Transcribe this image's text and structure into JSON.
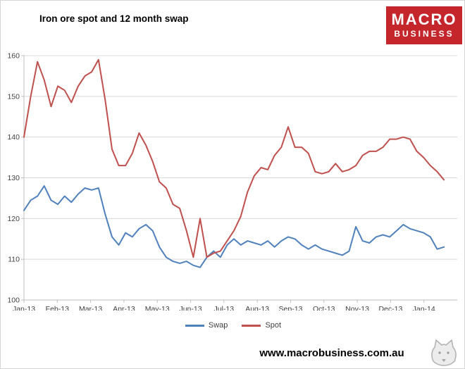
{
  "header": {
    "logo_line1": "MACRO",
    "logo_line2": "BUSINESS"
  },
  "footer": {
    "url": "www.macrobusiness.com.au"
  },
  "colors": {
    "grid": "#d9d9d9",
    "axis": "#bfbfbf",
    "tick_text": "#3f3f3f",
    "logo_bg": "#c4262c",
    "logo_text": "#ffffff"
  },
  "chart_data": {
    "type": "line",
    "title": "Iron ore spot and 12 month swap",
    "x_tick_labels": [
      "Jan-13",
      "Feb-13",
      "Mar-13",
      "Apr-13",
      "May-13",
      "Jun-13",
      "Jul-13",
      "Aug-13",
      "Sep-13",
      "Oct-13",
      "Nov-13",
      "Dec-13",
      "Jan-14"
    ],
    "x_span_months": 12.6,
    "ylim": [
      100,
      160
    ],
    "ytick_step": 10,
    "grid": true,
    "legend_position": "bottom",
    "series": [
      {
        "name": "Swap",
        "color": "#4f81bd",
        "sampling": "weekly",
        "values": [
          122,
          124.5,
          125.5,
          128,
          124.5,
          123.5,
          125.5,
          124,
          126,
          127.5,
          127,
          127.5,
          121,
          115.5,
          113.5,
          116.5,
          115.5,
          117.5,
          118.5,
          117,
          113,
          110.5,
          109.5,
          109,
          109.5,
          108.5,
          108,
          110.5,
          112,
          110.5,
          113.5,
          115,
          113.5,
          114.5,
          114,
          113.5,
          114.5,
          113,
          114.5,
          115.5,
          115,
          113.5,
          112.5,
          113.5,
          112.5,
          112,
          111.5,
          111,
          112,
          118,
          114.5,
          114,
          115.5,
          116,
          115.5,
          117,
          118.5,
          117.5,
          117,
          116.5,
          115.5,
          112.5,
          113
        ]
      },
      {
        "name": "Spot",
        "color": "#c0504d",
        "sampling": "weekly",
        "values": [
          140,
          150,
          158.5,
          154,
          147.5,
          152.5,
          151.5,
          148.5,
          152.5,
          155,
          156,
          159,
          149,
          137,
          133,
          133,
          136,
          141,
          138,
          134,
          129,
          127.5,
          123.5,
          122.5,
          117,
          110.5,
          120,
          110.5,
          111.5,
          112,
          114.5,
          117,
          120.5,
          126.5,
          130.5,
          132.5,
          132,
          135.5,
          137.5,
          142.5,
          137.5,
          137.5,
          136,
          131.5,
          131,
          131.5,
          133.5,
          131.5,
          132,
          133,
          135.5,
          136.5,
          136.5,
          137.5,
          139.5,
          139.5,
          140,
          139.5,
          136.5,
          135,
          133,
          131.5,
          129.5
        ]
      }
    ]
  }
}
